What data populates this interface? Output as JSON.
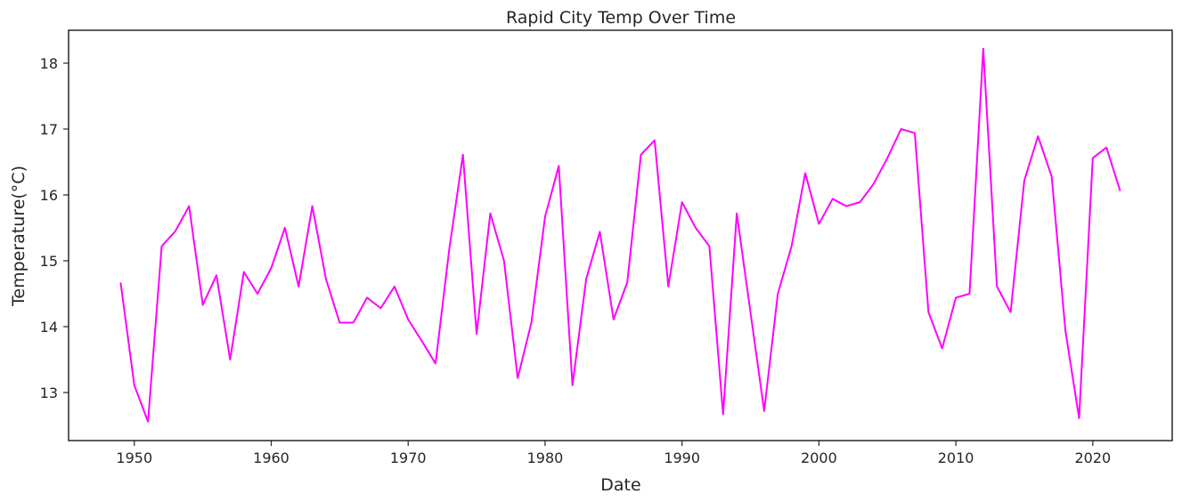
{
  "chart_data": {
    "type": "line",
    "title": "Rapid City Temp Over Time",
    "xlabel": "Date",
    "ylabel": "Temperature($^\\circ$C)",
    "ylabel_display": "Temperature(°C)",
    "xlim": [
      1945.2,
      2025.8
    ],
    "ylim": [
      12.27,
      18.5
    ],
    "xticks": [
      1950,
      1960,
      1970,
      1980,
      1990,
      2000,
      2010,
      2020
    ],
    "yticks": [
      13,
      14,
      15,
      16,
      17,
      18
    ],
    "grid": false,
    "line_color": "#ff00ff",
    "series": [
      {
        "x": [
          1949,
          1950,
          1951,
          1952,
          1953,
          1954,
          1955,
          1956,
          1957,
          1958,
          1959,
          1960,
          1961,
          1962,
          1963,
          1964,
          1965,
          1966,
          1967,
          1968,
          1969,
          1970,
          1971,
          1972,
          1973,
          1974,
          1975,
          1976,
          1977,
          1978,
          1979,
          1980,
          1981,
          1982,
          1983,
          1984,
          1985,
          1986,
          1987,
          1988,
          1989,
          1990,
          1991,
          1992,
          1993,
          1994,
          1995,
          1996,
          1997,
          1998,
          1999,
          2000,
          2001,
          2002,
          2003,
          2004,
          2005,
          2006,
          2007,
          2008,
          2009,
          2010,
          2011,
          2012,
          2013,
          2014,
          2015,
          2016,
          2017,
          2018,
          2019,
          2020,
          2021,
          2022
        ],
        "values": [
          14.67,
          13.11,
          12.56,
          15.22,
          15.45,
          15.83,
          14.33,
          14.78,
          13.5,
          14.83,
          14.5,
          14.89,
          15.5,
          14.61,
          15.83,
          14.72,
          14.06,
          14.06,
          14.44,
          14.28,
          14.61,
          14.11,
          13.78,
          13.44,
          15.17,
          16.61,
          13.89,
          15.72,
          15.0,
          13.22,
          14.06,
          15.67,
          16.44,
          13.11,
          14.72,
          15.44,
          14.11,
          14.67,
          16.61,
          16.83,
          14.61,
          15.89,
          15.5,
          15.22,
          12.67,
          15.72,
          14.22,
          12.72,
          14.5,
          15.22,
          16.33,
          15.56,
          15.94,
          15.83,
          15.89,
          16.17,
          16.56,
          17.0,
          16.94,
          14.22,
          13.67,
          14.44,
          14.5,
          18.22,
          14.61,
          14.22,
          16.22,
          16.89,
          16.28,
          13.94,
          12.61,
          16.56,
          16.72,
          16.06
        ]
      }
    ]
  }
}
